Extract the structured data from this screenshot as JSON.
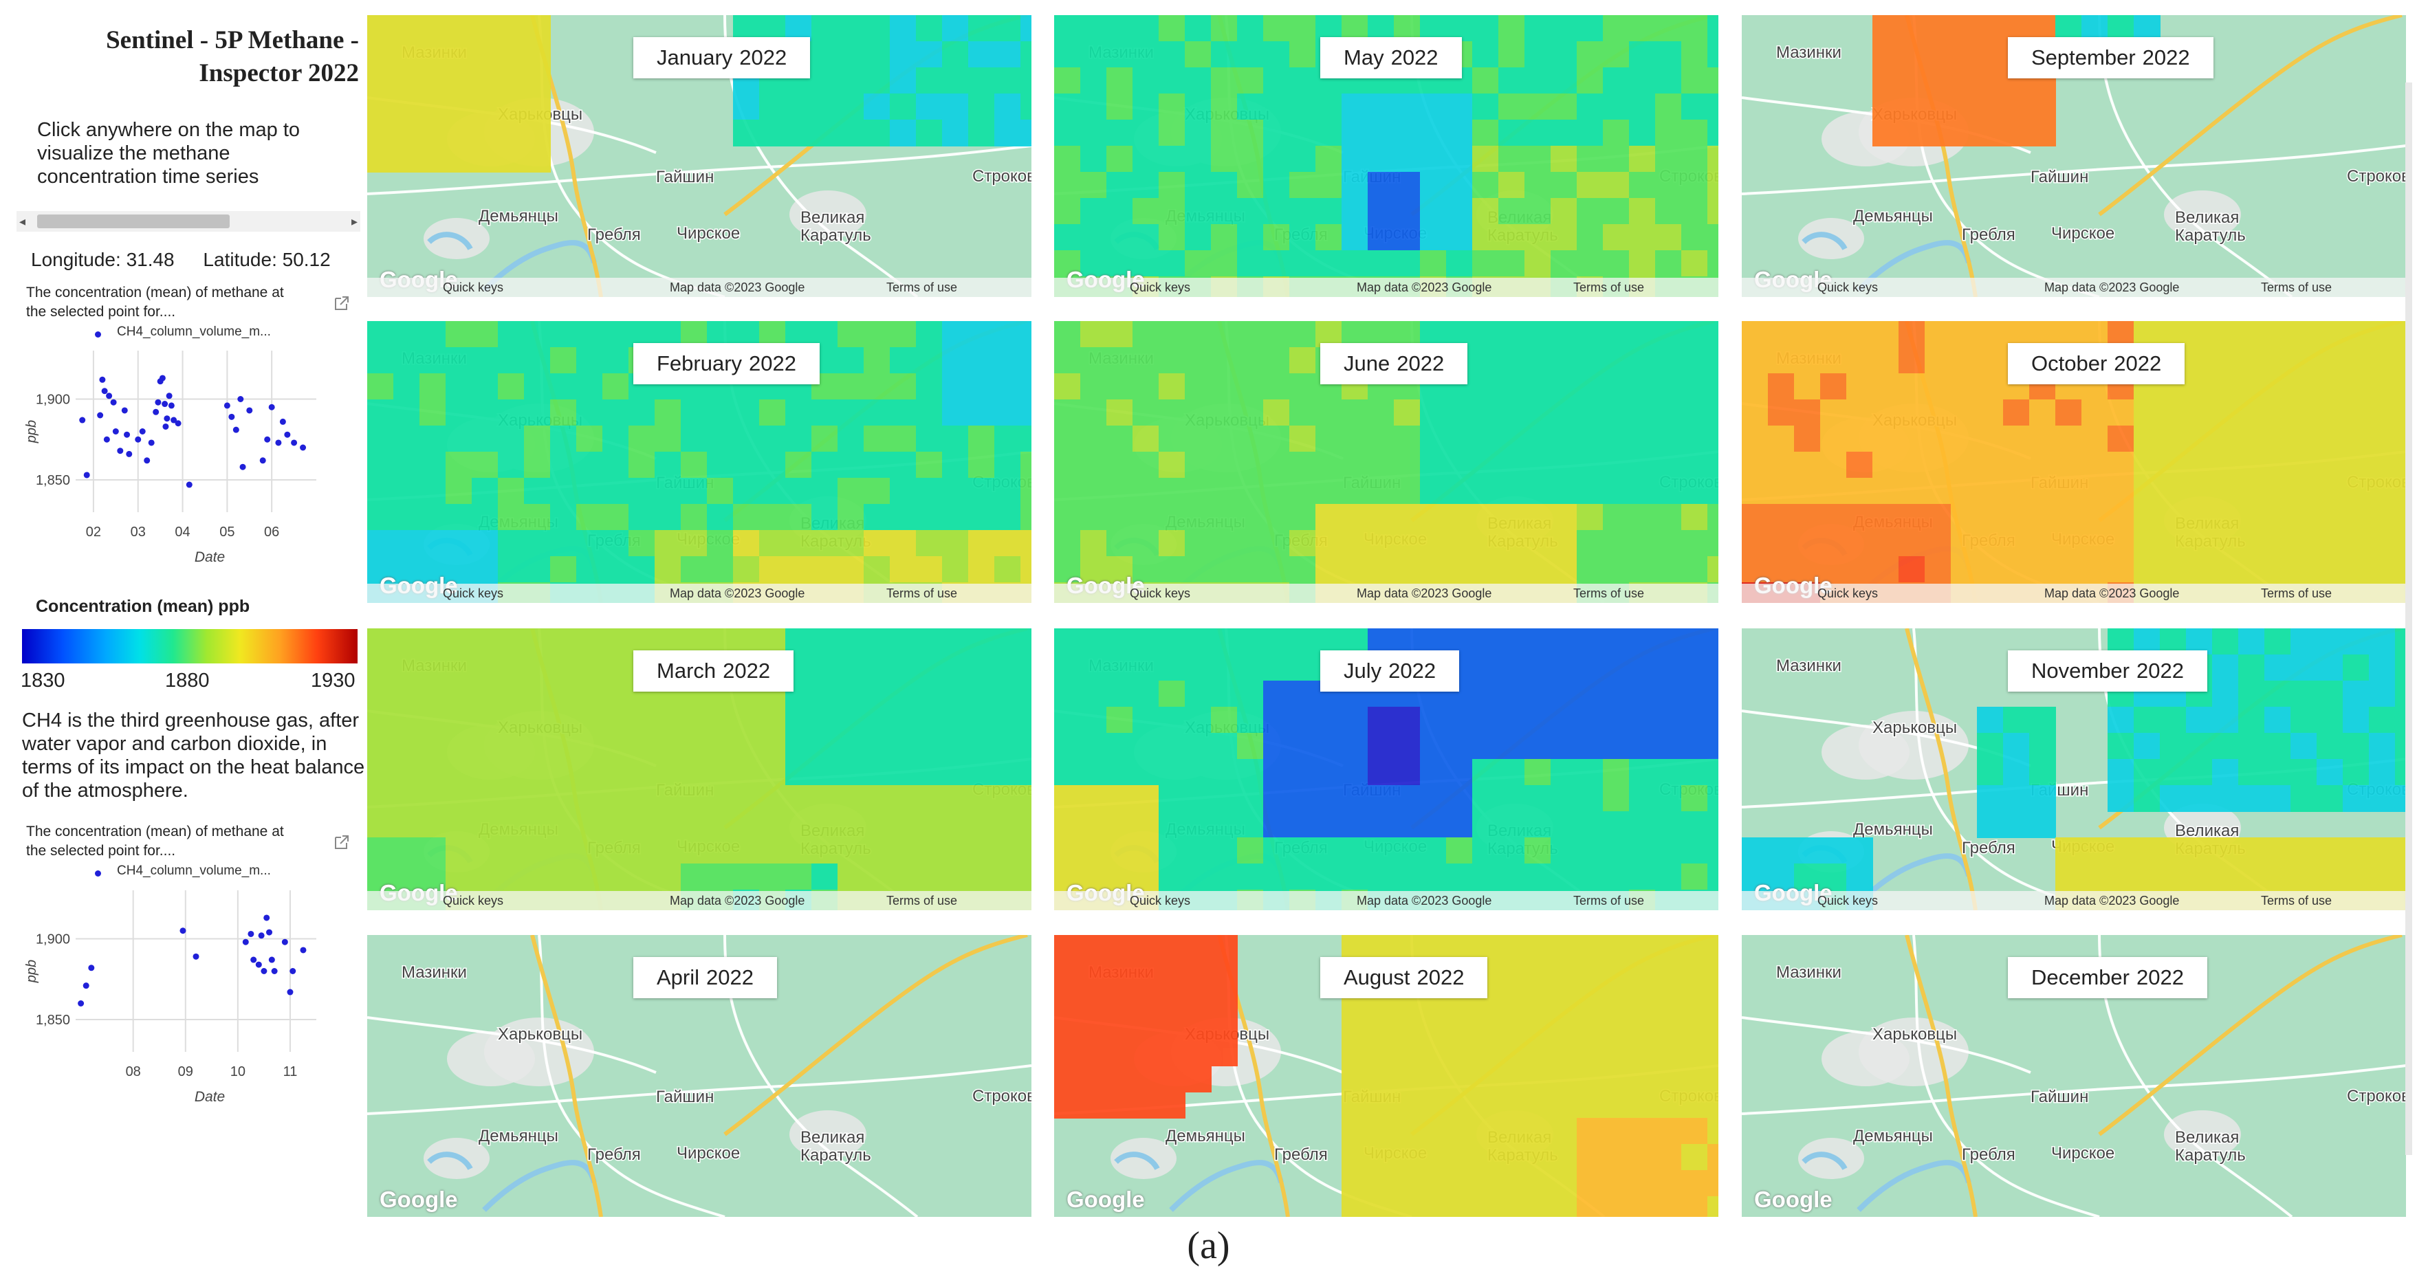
{
  "sidebar": {
    "title_line1": "Sentinel - 5P Methane - ",
    "title_line2": "Inspector 2022",
    "instruction_lines": [
      "Click anywhere on the map to",
      "visualize the methane",
      "concentration time series"
    ],
    "scroll_left": "◂",
    "scroll_right": "▸",
    "longitude_label": "Longitude: 31.48",
    "latitude_label": "Latitude: 50.12",
    "chart_caption_line1": "The concentration (mean) of methane at",
    "chart_caption_line2": "the selected point for....",
    "legend_entry": "CH4_column_volume_m...",
    "colorbar_title": "Concentration (mean) ppb",
    "colorbar_ticks": [
      "1830",
      "1880",
      "1930"
    ],
    "description_lines": [
      "CH4 is the third greenhouse gas, after",
      "water vapor and carbon dioxide, in",
      "terms of its impact on the heat balance",
      "of the atmosphere."
    ],
    "chart2_caption_line1": "The concentration (mean) of methane at",
    "chart2_caption_line2": "the selected point for...."
  },
  "chart_data": [
    {
      "type": "scatter",
      "title": "The concentration (mean) of methane at the selected point for....",
      "xlabel": "Date",
      "ylabel": "ppb",
      "x_ticks": [
        "02",
        "03",
        "04",
        "05",
        "06"
      ],
      "y_ticks": [
        "1,850",
        "1,900"
      ],
      "ylim": [
        1830,
        1930
      ],
      "xlim": [
        1.6,
        7.0
      ],
      "series": [
        {
          "name": "CH4_column_volume_m...",
          "x": [
            1.75,
            1.85,
            2.15,
            2.2,
            2.25,
            2.3,
            2.35,
            2.45,
            2.5,
            2.6,
            2.7,
            2.75,
            2.8,
            3.0,
            3.1,
            3.2,
            3.3,
            3.4,
            3.45,
            3.5,
            3.55,
            3.6,
            3.62,
            3.65,
            3.7,
            3.75,
            3.8,
            3.9,
            4.15,
            5.0,
            5.1,
            5.2,
            5.3,
            5.35,
            5.5,
            5.8,
            5.9,
            6.0,
            6.15,
            6.25,
            6.35,
            6.5,
            6.7
          ],
          "y": [
            1887,
            1853,
            1890,
            1912,
            1905,
            1875,
            1902,
            1898,
            1880,
            1868,
            1893,
            1878,
            1866,
            1875,
            1880,
            1862,
            1873,
            1892,
            1898,
            1911,
            1913,
            1897,
            1883,
            1888,
            1902,
            1896,
            1887,
            1885,
            1847,
            1896,
            1889,
            1881,
            1900,
            1858,
            1893,
            1862,
            1875,
            1895,
            1873,
            1886,
            1878,
            1873,
            1870
          ]
        }
      ]
    },
    {
      "type": "scatter",
      "title": "The concentration (mean) of methane at the selected point for....",
      "xlabel": "Date",
      "ylabel": "ppb",
      "x_ticks": [
        "08",
        "09",
        "10",
        "11"
      ],
      "y_ticks": [
        "1,850",
        "1,900"
      ],
      "ylim": [
        1830,
        1930
      ],
      "xlim": [
        6.9,
        11.5
      ],
      "series": [
        {
          "name": "CH4_column_volume_m...",
          "x": [
            7.0,
            7.1,
            7.2,
            8.95,
            9.2,
            10.15,
            10.25,
            10.3,
            10.4,
            10.45,
            10.5,
            10.55,
            10.6,
            10.65,
            10.7,
            10.9,
            11.0,
            11.05,
            11.25
          ],
          "y": [
            1860,
            1871,
            1882,
            1905,
            1889,
            1898,
            1903,
            1887,
            1884,
            1902,
            1880,
            1913,
            1904,
            1887,
            1880,
            1898,
            1867,
            1880,
            1893
          ]
        }
      ]
    }
  ],
  "colors": {
    "accent_dot": "#2020d8",
    "map_base": "#aedfc3",
    "road_main": "#f2c84b",
    "road_minor": "#ffffff",
    "water": "#8ec9e8",
    "town": "#e8e8e8"
  },
  "place_names": {
    "mazinki": "Мазинки",
    "kharkovtsy": "Харьковцы",
    "gaishin": "Гайшин",
    "demyantsy": "Демьянцы",
    "greblya": "Гребля",
    "chirskoe": "Чирское",
    "velikaya": "Великая",
    "karatul": "Каратуль",
    "strokov": "Строков"
  },
  "map_footer": {
    "quick_keys": "Quick keys",
    "map_data": "Map data ©2023 Google",
    "terms": "Terms of use",
    "google_logo": "Google"
  },
  "panels": [
    {
      "month": "January",
      "year": "2022",
      "overlay": "jan"
    },
    {
      "month": "May",
      "year": "2022",
      "overlay": "may"
    },
    {
      "month": "September",
      "year": "2022",
      "overlay": "sep"
    },
    {
      "month": "February",
      "year": "2022",
      "overlay": "feb"
    },
    {
      "month": "June",
      "year": "2022",
      "overlay": "jun"
    },
    {
      "month": "October",
      "year": "2022",
      "overlay": "oct"
    },
    {
      "month": "March",
      "year": "2022",
      "overlay": "mar"
    },
    {
      "month": "July",
      "year": "2022",
      "overlay": "jul"
    },
    {
      "month": "November",
      "year": "2022",
      "overlay": "nov"
    },
    {
      "month": "April",
      "year": "2022",
      "overlay": "apr"
    },
    {
      "month": "August",
      "year": "2022",
      "overlay": "aug"
    },
    {
      "month": "December",
      "year": "2022",
      "overlay": "dec"
    }
  ],
  "figure_caption": "(a)"
}
